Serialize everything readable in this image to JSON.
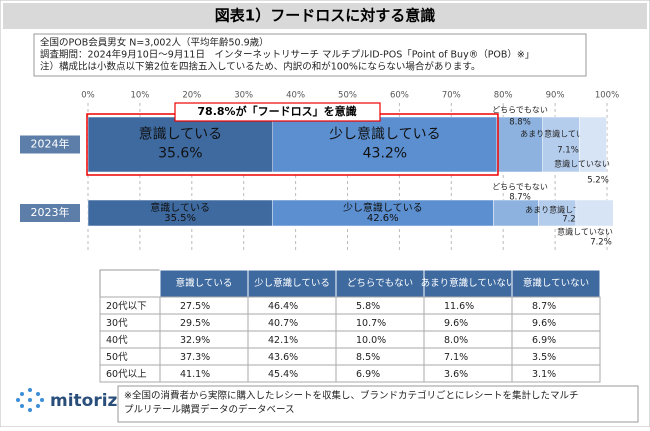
{
  "header": {
    "title": "図表1）フードロスに対する意識"
  },
  "notes": [
    "全国のPOB会員男女 N=3,002人（平均年齢50.9歳）",
    "調査期間：2024年9月10日～9月11日　インターネットリサーチ マルチプルID-POS「Point of Buy®（POB）※」",
    "注）構成比は小数点以下第2位を四捨五入しているため、内訳の和が100%にならない場合があります。"
  ],
  "chart_data": {
    "type": "stacked_bar_h",
    "categories": [
      "2024年",
      "2023年"
    ],
    "annotation": "78.8%が「フードロス」を意識",
    "xlim": [
      0,
      100
    ],
    "xticks": [
      {
        "value": 0,
        "label": "0%"
      },
      {
        "value": 10,
        "label": "10%"
      },
      {
        "value": 20,
        "label": "20%"
      },
      {
        "value": 30,
        "label": "30%"
      },
      {
        "value": 40,
        "label": "40%"
      },
      {
        "value": 50,
        "label": "50%"
      },
      {
        "value": 60,
        "label": "60%"
      },
      {
        "value": 70,
        "label": "70%"
      },
      {
        "value": 80,
        "label": "80%"
      },
      {
        "value": 90,
        "label": "90%"
      },
      {
        "value": 100,
        "label": "100%"
      }
    ],
    "grid": true,
    "series": [
      {
        "name": "意識している",
        "color": "#3e6aa0",
        "values": [
          35.6,
          35.5
        ],
        "value_labels": [
          "35.6%",
          "35.5%"
        ]
      },
      {
        "name": "少し意識している",
        "color": "#5b8fd0",
        "values": [
          43.2,
          42.6
        ],
        "value_labels": [
          "43.2%",
          "42.6%"
        ]
      },
      {
        "name": "どちらでもない",
        "color": "#8db2e0",
        "values": [
          8.8,
          8.7
        ],
        "value_labels": [
          "8.8%",
          "8.7%"
        ]
      },
      {
        "name": "あまり意識していない",
        "color": "#b5cdec",
        "values": [
          7.1,
          7.2
        ],
        "value_labels": [
          "7.1%",
          "7.2%"
        ]
      },
      {
        "name": "意識していない",
        "color": "#d7e4f5",
        "values": [
          5.2,
          7.2
        ],
        "value_labels": [
          "5.2%",
          "7.2%"
        ]
      }
    ]
  },
  "table": {
    "header": [
      "意識している",
      "少し意識している",
      "どちらでもない",
      "あまり意識していない",
      "意識していない"
    ],
    "rows": [
      [
        "20代以下",
        "27.5%",
        "46.4%",
        "5.8%",
        "11.6%",
        "8.7%"
      ],
      [
        "30代",
        "29.5%",
        "40.7%",
        "10.7%",
        "9.6%",
        "9.6%"
      ],
      [
        "40代",
        "32.9%",
        "42.1%",
        "10.0%",
        "8.0%",
        "6.9%"
      ],
      [
        "50代",
        "37.3%",
        "43.6%",
        "8.5%",
        "7.1%",
        "3.5%"
      ],
      [
        "60代以上",
        "41.1%",
        "45.4%",
        "6.9%",
        "3.6%",
        "3.1%"
      ]
    ]
  },
  "footer": {
    "logo": "mitoriz",
    "note": [
      "※全国の消費者から実際に購入したレシートを収集し、ブランドカテゴリごとにレシートを集計したマルチ",
      "プルリテール購買データのデータベース"
    ]
  }
}
